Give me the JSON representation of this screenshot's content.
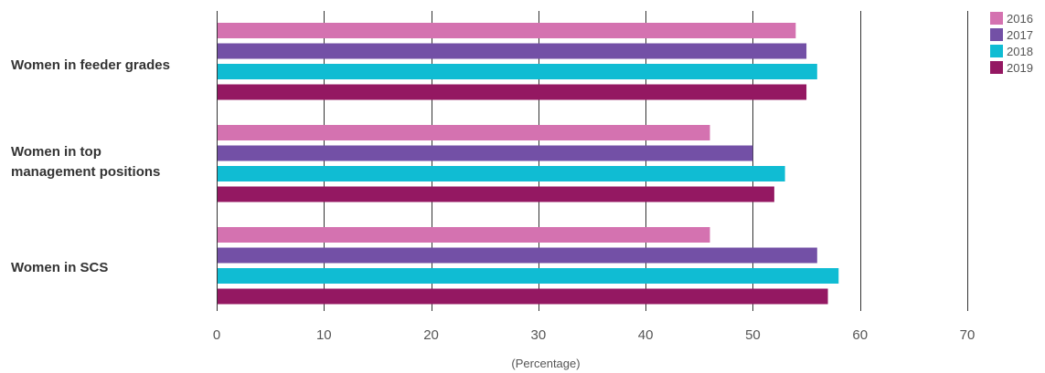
{
  "chart_data": {
    "type": "bar",
    "orientation": "horizontal",
    "categories": [
      "Women in feeder grades",
      "Women in top\nmanagement positions",
      "Women in SCS"
    ],
    "series": [
      {
        "name": "2016",
        "color": "#d472b0",
        "values": [
          54,
          46,
          46
        ]
      },
      {
        "name": "2017",
        "color": "#7350a6",
        "values": [
          55,
          50,
          56
        ]
      },
      {
        "name": "2018",
        "color": "#10bcd3",
        "values": [
          56,
          53,
          58
        ]
      },
      {
        "name": "2019",
        "color": "#941862",
        "values": [
          55,
          52,
          57
        ]
      }
    ],
    "xlabel": "(Percentage)",
    "xlim": [
      0,
      70
    ],
    "xticks": [
      0,
      10,
      20,
      30,
      40,
      50,
      60,
      70
    ],
    "grid": true,
    "legend": "top-right"
  }
}
